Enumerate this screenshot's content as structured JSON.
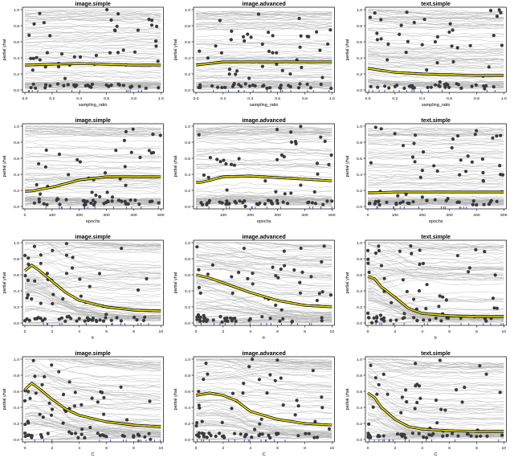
{
  "chart_data": [
    {
      "type": "line",
      "title": "image.simple",
      "xlabel": "sampling_ratio",
      "ylabel": "partial yhat",
      "xlim": [
        0,
        1
      ],
      "ylim": [
        0,
        1
      ],
      "xticks": [
        "0.0",
        "0.2",
        "0.4",
        "0.6",
        "0.8",
        "1.0"
      ],
      "yticks": [
        "0.0",
        "0.2",
        "0.4",
        "0.6",
        "0.8",
        "1.0"
      ],
      "mean_curve": {
        "x": [
          0,
          0.2,
          0.4,
          0.6,
          0.8,
          1.0
        ],
        "y": [
          0.31,
          0.32,
          0.33,
          0.32,
          0.31,
          0.31
        ]
      }
    },
    {
      "type": "line",
      "title": "image.advanced",
      "xlabel": "sampling_ratio",
      "ylabel": "partial yhat",
      "xlim": [
        0,
        1
      ],
      "ylim": [
        0,
        1
      ],
      "xticks": [
        "0.0",
        "0.2",
        "0.4",
        "0.6",
        "0.8",
        "1.0"
      ],
      "yticks": [
        "0.0",
        "0.2",
        "0.4",
        "0.6",
        "0.8",
        "1.0"
      ],
      "mean_curve": {
        "x": [
          0,
          0.2,
          0.4,
          0.6,
          0.8,
          1.0
        ],
        "y": [
          0.31,
          0.35,
          0.35,
          0.35,
          0.35,
          0.35
        ]
      }
    },
    {
      "type": "line",
      "title": "text.simple",
      "xlabel": "sampling_ratio",
      "ylabel": "partial yhat",
      "xlim": [
        0,
        1
      ],
      "ylim": [
        0,
        1
      ],
      "xticks": [
        "0.0",
        "0.2",
        "0.4",
        "0.6",
        "0.8",
        "1.0"
      ],
      "yticks": [
        "0.0",
        "0.2",
        "0.4",
        "0.6",
        "0.8",
        "1.0"
      ],
      "mean_curve": {
        "x": [
          0,
          0.2,
          0.4,
          0.6,
          0.8,
          1.0
        ],
        "y": [
          0.27,
          0.22,
          0.2,
          0.19,
          0.18,
          0.18
        ]
      }
    },
    {
      "type": "line",
      "title": "image.simple",
      "xlabel": "epochs",
      "ylabel": "partial yhat",
      "xlim": [
        0,
        500
      ],
      "ylim": [
        0,
        1
      ],
      "xticks": [
        "0",
        "100",
        "200",
        "300",
        "400",
        "500"
      ],
      "yticks": [
        "0.0",
        "0.2",
        "0.4",
        "0.6",
        "0.8",
        "1.0"
      ],
      "mean_curve": {
        "x": [
          20,
          100,
          200,
          300,
          400,
          500
        ],
        "y": [
          0.19,
          0.24,
          0.33,
          0.37,
          0.37,
          0.37
        ]
      }
    },
    {
      "type": "line",
      "title": "image.advanced",
      "xlabel": "epochs",
      "ylabel": "partial yhat",
      "xlim": [
        0,
        500
      ],
      "ylim": [
        0,
        1
      ],
      "xticks": [
        "100",
        "200",
        "300",
        "400",
        "500"
      ],
      "yticks": [
        "0.0",
        "0.2",
        "0.4",
        "0.6",
        "0.8",
        "1.0"
      ],
      "mean_curve": {
        "x": [
          20,
          100,
          200,
          300,
          400,
          500
        ],
        "y": [
          0.3,
          0.37,
          0.38,
          0.36,
          0.34,
          0.32
        ]
      }
    },
    {
      "type": "line",
      "title": "text.simple",
      "xlabel": "epochs",
      "ylabel": "partial yhat",
      "xlim": [
        0,
        500
      ],
      "ylim": [
        0,
        1
      ],
      "xticks": [
        "0",
        "100",
        "200",
        "300",
        "400",
        "500"
      ],
      "yticks": [
        "0.0",
        "0.2",
        "0.4",
        "0.6",
        "0.8",
        "1.0"
      ],
      "mean_curve": {
        "x": [
          20,
          100,
          200,
          300,
          400,
          500
        ],
        "y": [
          0.17,
          0.18,
          0.18,
          0.18,
          0.18,
          0.18
        ]
      }
    },
    {
      "type": "line",
      "title": "image.simple",
      "xlabel": "lr",
      "ylabel": "partial yhat",
      "xlim": [
        0,
        10
      ],
      "ylim": [
        0,
        1
      ],
      "xticks": [
        "0",
        "2",
        "4",
        "6",
        "8",
        "10"
      ],
      "yticks": [
        "0.0",
        "0.2",
        "0.4",
        "0.6",
        "0.8",
        "1.0"
      ],
      "mean_curve": {
        "x": [
          0,
          0.5,
          1,
          2,
          3,
          4,
          6,
          8,
          10
        ],
        "y": [
          0.65,
          0.72,
          0.66,
          0.52,
          0.38,
          0.28,
          0.2,
          0.16,
          0.15
        ]
      }
    },
    {
      "type": "line",
      "title": "image.advanced",
      "xlabel": "lr",
      "ylabel": "partial yhat",
      "xlim": [
        0,
        10
      ],
      "ylim": [
        0,
        1
      ],
      "xticks": [
        "0",
        "2",
        "4",
        "6",
        "8",
        "10"
      ],
      "yticks": [
        "0.0",
        "0.2",
        "0.4",
        "0.6",
        "0.8",
        "1.0"
      ],
      "mean_curve": {
        "x": [
          0,
          1,
          2,
          3,
          4,
          6,
          8,
          10
        ],
        "y": [
          0.6,
          0.56,
          0.5,
          0.44,
          0.38,
          0.28,
          0.22,
          0.2
        ]
      }
    },
    {
      "type": "line",
      "title": "text.simple",
      "xlabel": "lr",
      "ylabel": "partial yhat",
      "xlim": [
        0,
        10
      ],
      "ylim": [
        0,
        1
      ],
      "xticks": [
        "0",
        "2",
        "4",
        "6",
        "8",
        "10"
      ],
      "yticks": [
        "0.0",
        "0.2",
        "0.4",
        "0.6",
        "0.8",
        "1.0"
      ],
      "mean_curve": {
        "x": [
          0,
          0.5,
          1,
          2,
          3,
          4,
          6,
          8,
          10
        ],
        "y": [
          0.58,
          0.55,
          0.45,
          0.32,
          0.18,
          0.12,
          0.09,
          0.08,
          0.08
        ]
      }
    },
    {
      "type": "line",
      "title": "image.simple",
      "xlabel": "C",
      "ylabel": "partial yhat",
      "xlim": [
        0,
        10
      ],
      "ylim": [
        0,
        1
      ],
      "xticks": [
        "0",
        "2",
        "4",
        "6",
        "8",
        "10"
      ],
      "yticks": [
        "0.0",
        "0.2",
        "0.4",
        "0.6",
        "0.8",
        "1.0"
      ],
      "mean_curve": {
        "x": [
          0,
          0.5,
          1,
          2,
          3,
          4,
          6,
          8,
          10
        ],
        "y": [
          0.62,
          0.7,
          0.64,
          0.5,
          0.38,
          0.3,
          0.22,
          0.18,
          0.16
        ]
      }
    },
    {
      "type": "line",
      "title": "image.advanced",
      "xlabel": "C",
      "ylabel": "partial yhat",
      "xlim": [
        0,
        10
      ],
      "ylim": [
        0,
        1
      ],
      "xticks": [
        "0",
        "2",
        "4",
        "6",
        "8",
        "10"
      ],
      "yticks": [
        "0.0",
        "0.2",
        "0.4",
        "0.6",
        "0.8",
        "1.0"
      ],
      "mean_curve": {
        "x": [
          0,
          1,
          2,
          3,
          4,
          6,
          8,
          10
        ],
        "y": [
          0.55,
          0.58,
          0.55,
          0.48,
          0.35,
          0.25,
          0.2,
          0.18
        ]
      }
    },
    {
      "type": "line",
      "title": "text.simple",
      "xlabel": "C",
      "ylabel": "partial yhat",
      "xlim": [
        0,
        10
      ],
      "ylim": [
        0,
        1
      ],
      "xticks": [
        "0",
        "2",
        "4",
        "6",
        "8",
        "10"
      ],
      "yticks": [
        "0.0",
        "0.2",
        "0.4",
        "0.6",
        "0.8",
        "1.0"
      ],
      "mean_curve": {
        "x": [
          0,
          0.5,
          1,
          2,
          3,
          4,
          6,
          8,
          10
        ],
        "y": [
          0.58,
          0.52,
          0.4,
          0.25,
          0.16,
          0.13,
          0.11,
          0.1,
          0.1
        ]
      }
    }
  ],
  "colors": {
    "ice_lines": "#b5b5b5",
    "points": "#3a3a3a",
    "mean_outer": "#000000",
    "mean_inner": "#f2e600",
    "rug": "#2233aa"
  }
}
